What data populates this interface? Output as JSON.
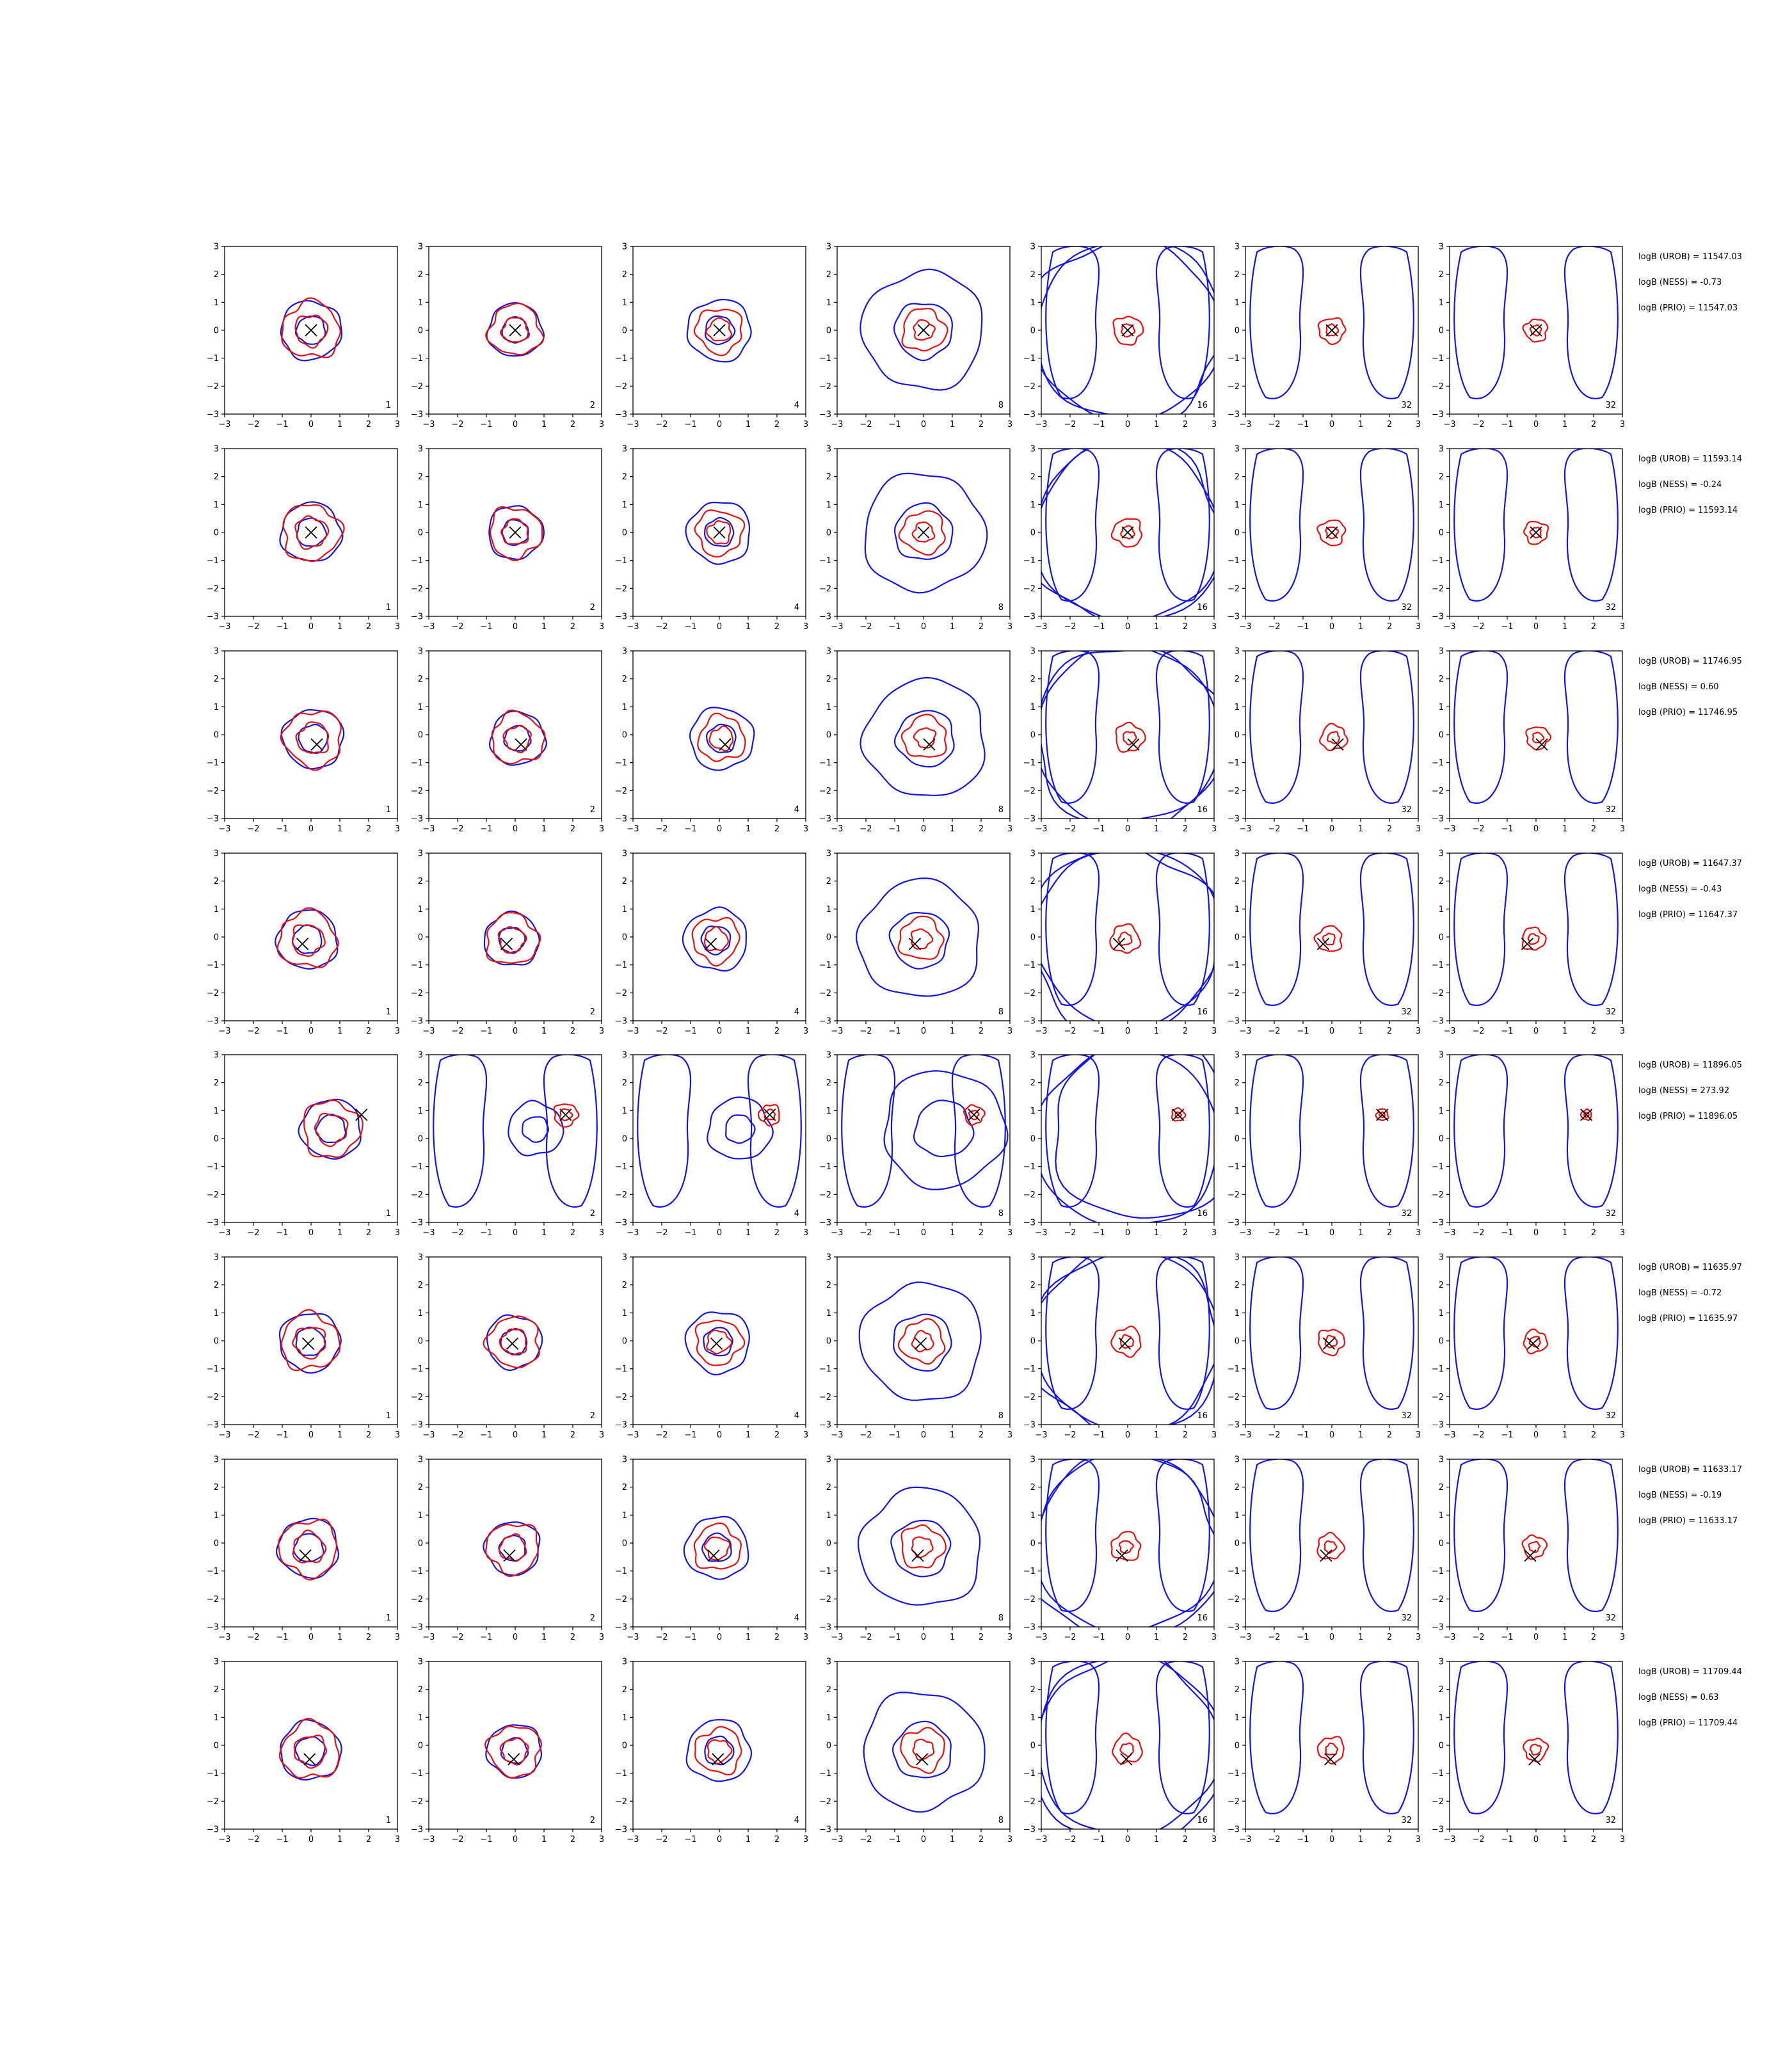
{
  "chart_data": {
    "type": "contour-grid",
    "title": "",
    "rows": 8,
    "cols": 7,
    "xlim": [
      -3,
      3
    ],
    "ylim": [
      -3,
      3
    ],
    "tick_labels": [
      "−3",
      "−2",
      "−1",
      "0",
      "1",
      "2",
      "3"
    ],
    "grid": false,
    "panel_numbers": [
      "1",
      "2",
      "4",
      "8",
      "16",
      "32",
      "32"
    ],
    "colors": {
      "blue": "#1515e0",
      "red": "#e51010",
      "marker": "#000000"
    },
    "markers": [
      [
        0.0,
        0.0
      ],
      [
        0.0,
        0.0
      ],
      [
        0.2,
        -0.35
      ],
      [
        -0.3,
        -0.25
      ],
      [
        1.75,
        0.85
      ],
      [
        -0.1,
        -0.1
      ],
      [
        -0.2,
        -0.45
      ],
      [
        -0.05,
        -0.5
      ]
    ],
    "annotations": [
      [
        "logB (UROB) = 11547.03",
        "logB (NESS) = -0.73",
        "logB (PRIO) = 11547.03"
      ],
      [
        "logB (UROB) = 11593.14",
        "logB (NESS) = -0.24",
        "logB (PRIO) = 11593.14"
      ],
      [
        "logB (UROB) = 11746.95",
        "logB (NESS) = 0.60",
        "logB (PRIO) = 11746.95"
      ],
      [
        "logB (UROB) = 11647.37",
        "logB (NESS) = -0.43",
        "logB (PRIO) = 11647.37"
      ],
      [
        "logB (UROB) = 11896.05",
        "logB (NESS) = 273.92",
        "logB (PRIO) = 11896.05"
      ],
      [
        "logB (UROB) = 11635.97",
        "logB (NESS) = -0.72",
        "logB (PRIO) = 11635.97"
      ],
      [
        "logB (UROB) = 11633.17",
        "logB (NESS) = -0.19",
        "logB (PRIO) = 11633.17"
      ],
      [
        "logB (UROB) = 11709.44",
        "logB (NESS) = 0.63",
        "logB (PRIO) = 11709.44"
      ]
    ],
    "contours": {
      "blue_rings_by_col": [
        [
          1.05,
          0.5
        ],
        [
          0.95,
          0.45
        ],
        [
          1.1,
          0.5
        ],
        [
          2.1,
          1.0
        ],
        [
          3.3
        ],
        [],
        []
      ],
      "red_rings_by_col": [
        [
          1.0,
          0.55
        ],
        [
          0.9,
          0.45
        ],
        [
          0.8,
          0.4
        ],
        [
          0.75,
          0.35
        ],
        [
          0.5,
          0.22
        ],
        [
          0.45,
          0.2
        ],
        [
          0.4,
          0.18
        ]
      ]
    }
  }
}
